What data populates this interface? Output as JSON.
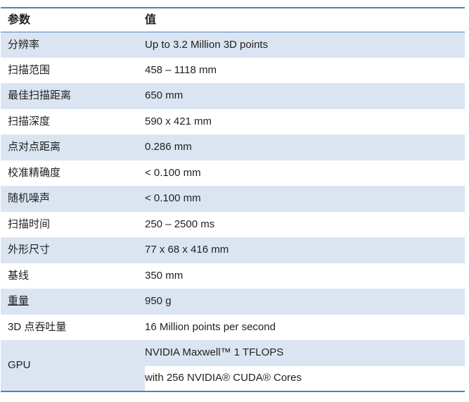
{
  "table": {
    "headers": {
      "param": "参数",
      "value": "值"
    },
    "rows": [
      {
        "param": "分辨率",
        "value": "Up to 3.2 Million 3D points"
      },
      {
        "param": "扫描范围",
        "value": "458 – 1118 mm"
      },
      {
        "param": "最佳扫描距离",
        "value": "650 mm"
      },
      {
        "param": "扫描深度",
        "value": "590 x 421 mm"
      },
      {
        "param": "点对点距离",
        "value": "0.286 mm"
      },
      {
        "param": "校准精确度",
        "value": "< 0.100 mm"
      },
      {
        "param": "随机噪声",
        "value": "< 0.100 mm"
      },
      {
        "param": "扫描时间",
        "value": "250 – 2500 ms"
      },
      {
        "param": "外形尺寸",
        "value": "77 x 68 x 416 mm"
      },
      {
        "param": "基线",
        "value": "350 mm"
      },
      {
        "param": "重量",
        "value": "950 g"
      },
      {
        "param": "3D 点吞吐量",
        "value": "16 Million points per second"
      },
      {
        "param": "GPU",
        "value": "NVIDIA Maxwell™ 1 TFLOPS"
      },
      {
        "param": "",
        "value": "with 256 NVIDIA® CUDA® Cores"
      }
    ],
    "colors": {
      "shaded_row": "#dbe5f1",
      "border": "#4f81bd",
      "text": "#1f1f1f"
    }
  }
}
